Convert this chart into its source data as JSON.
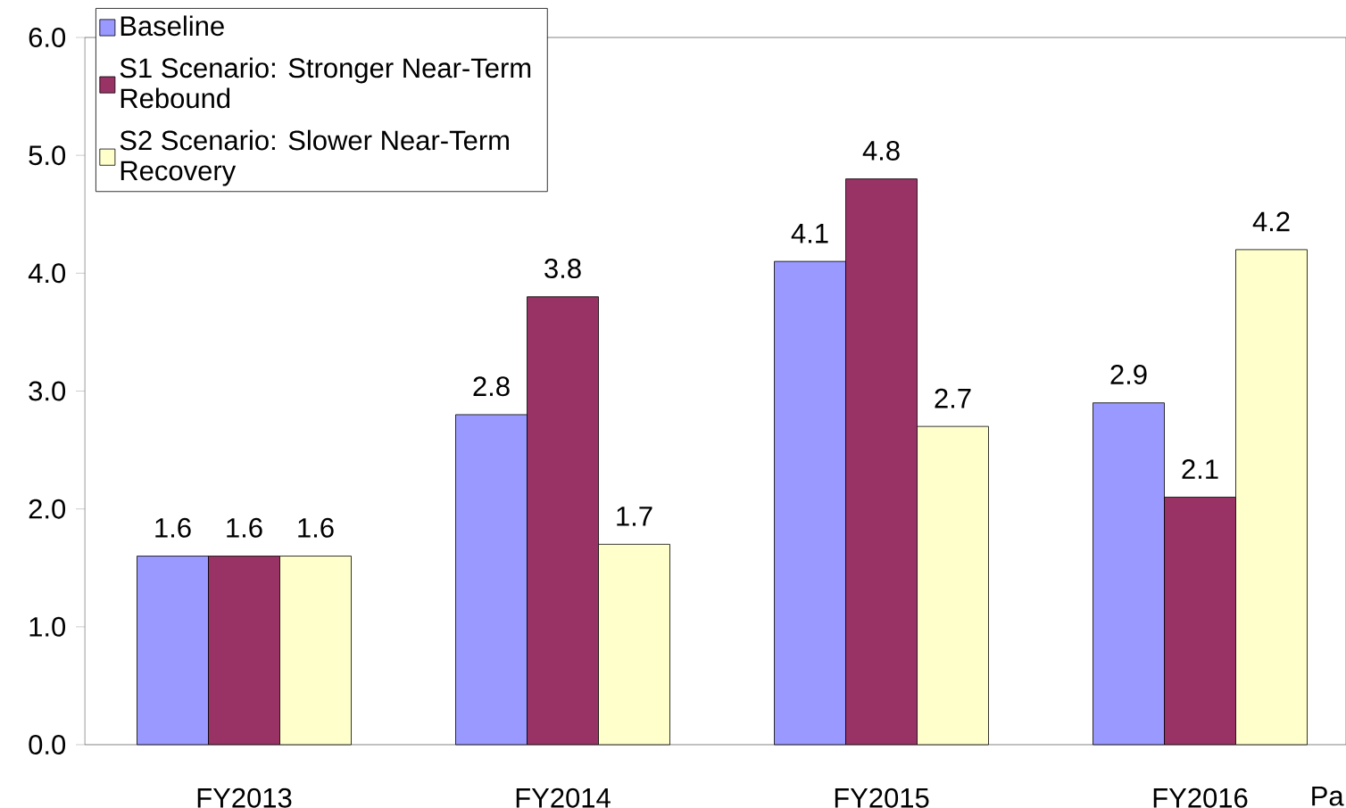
{
  "chart_data": {
    "type": "bar",
    "categories": [
      "FY2013",
      "FY2014",
      "FY2015",
      "FY2016"
    ],
    "series": [
      {
        "name": "Baseline",
        "color": "#9999ff",
        "values": [
          1.6,
          2.8,
          4.1,
          2.9
        ]
      },
      {
        "name": "S1 Scenario: Stronger Near-Term Rebound",
        "color": "#993366",
        "values": [
          1.6,
          3.8,
          4.8,
          2.1
        ]
      },
      {
        "name": "S2 Scenario: Slower Near-Term Recovery",
        "color": "#ffffcc",
        "values": [
          1.6,
          1.7,
          2.7,
          4.2
        ]
      }
    ],
    "ylim": [
      0,
      6
    ],
    "yticks": [
      {
        "value": 0,
        "label": "0.0"
      },
      {
        "value": 1,
        "label": "1.0"
      },
      {
        "value": 2,
        "label": "2.0"
      },
      {
        "value": 3,
        "label": "3.0"
      },
      {
        "value": 4,
        "label": "4.0"
      },
      {
        "value": 5,
        "label": "5.0"
      },
      {
        "value": 6,
        "label": "6.0"
      }
    ],
    "data_labels": true,
    "legend": "top left",
    "annotations": [
      "Pa"
    ]
  }
}
